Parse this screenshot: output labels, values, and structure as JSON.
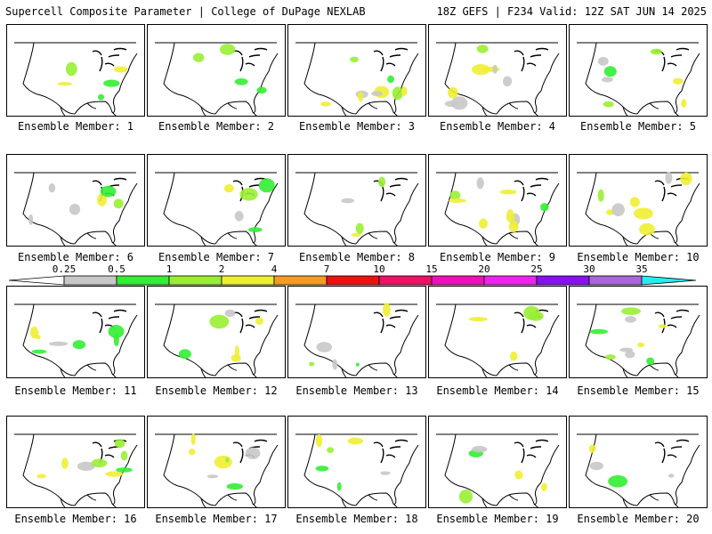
{
  "header": {
    "left": "Supercell Composite Parameter | College of DuPage NEXLAB",
    "right": "18Z GEFS | F234 Valid: 12Z SAT JUN 14 2025"
  },
  "members": [
    {
      "label": "Ensemble Member: 1"
    },
    {
      "label": "Ensemble Member: 2"
    },
    {
      "label": "Ensemble Member: 3"
    },
    {
      "label": "Ensemble Member: 4"
    },
    {
      "label": "Ensemble Member: 5"
    },
    {
      "label": "Ensemble Member: 6"
    },
    {
      "label": "Ensemble Member: 7"
    },
    {
      "label": "Ensemble Member: 8"
    },
    {
      "label": "Ensemble Member: 9"
    },
    {
      "label": "Ensemble Member: 10"
    },
    {
      "label": "Ensemble Member: 11"
    },
    {
      "label": "Ensemble Member: 12"
    },
    {
      "label": "Ensemble Member: 13"
    },
    {
      "label": "Ensemble Member: 14"
    },
    {
      "label": "Ensemble Member: 15"
    },
    {
      "label": "Ensemble Member: 16"
    },
    {
      "label": "Ensemble Member: 17"
    },
    {
      "label": "Ensemble Member: 18"
    },
    {
      "label": "Ensemble Member: 19"
    },
    {
      "label": "Ensemble Member: 20"
    }
  ],
  "colorbar": {
    "ticks": [
      "0.25",
      "0.5",
      "1",
      "2",
      "4",
      "7",
      "10",
      "15",
      "20",
      "25",
      "30",
      "35"
    ],
    "colors": [
      "#c8c8c8",
      "#33ee33",
      "#99ee33",
      "#eeee33",
      "#f59a22",
      "#ee1111",
      "#ee1166",
      "#ee11bb",
      "#ee22ee",
      "#8811ee",
      "#aa66dd",
      "#22eeee"
    ]
  }
}
